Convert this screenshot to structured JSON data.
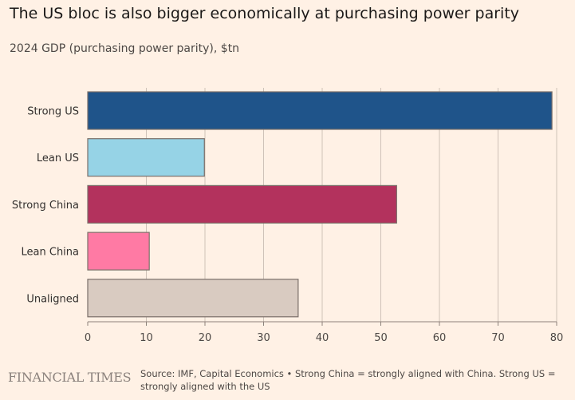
{
  "title": "The US bloc is also bigger economically at purchasing power parity",
  "subtitle": "2024 GDP (purchasing power parity), $tn",
  "brand": "FINANCIAL TIMES",
  "source": "Source: IMF, Capital Economics • Strong China = strongly aligned with China. Strong US = strongly aligned with the US",
  "chart_data": {
    "type": "bar",
    "orientation": "horizontal",
    "categories": [
      "Strong US",
      "Lean US",
      "Strong China",
      "Lean China",
      "Unaligned"
    ],
    "values": [
      79.2,
      19.9,
      52.7,
      10.5,
      35.9
    ],
    "colors": [
      "#1f548a",
      "#96d3e6",
      "#b3325d",
      "#ff7aa4",
      "#d9cbc1"
    ],
    "xlim": [
      0,
      80
    ],
    "xticks": [
      0,
      10,
      20,
      30,
      40,
      50,
      60,
      70,
      80
    ],
    "grid": true,
    "title": "The US bloc is also bigger economically at purchasing power parity",
    "xlabel": "",
    "ylabel": ""
  }
}
